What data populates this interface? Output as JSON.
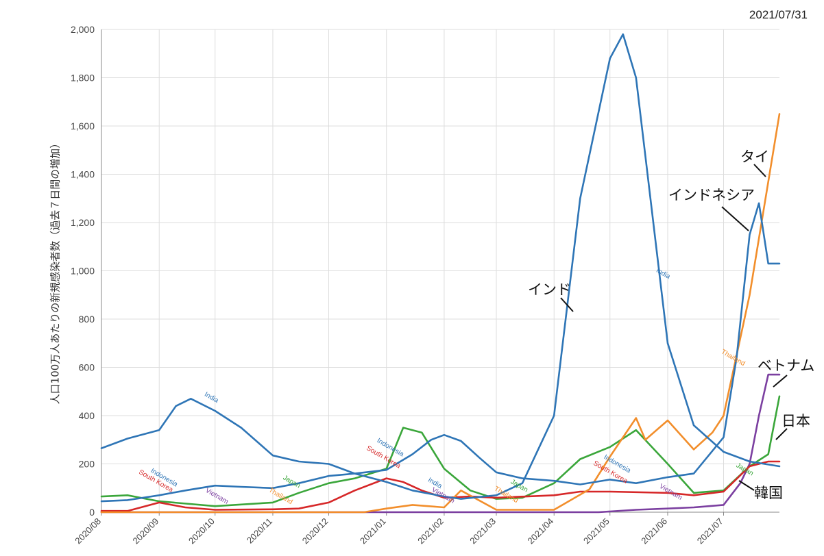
{
  "chart_data": {
    "type": "line",
    "date": "2021/07/31",
    "ylabel": "人口100万人あたりの新規感染者数（過去７日間の増加）",
    "ylim": [
      0,
      2000
    ],
    "yticks": [
      0,
      200,
      400,
      600,
      800,
      1000,
      1200,
      1400,
      1600,
      1800,
      2000
    ],
    "ytick_labels": [
      "0",
      "200",
      "400",
      "600",
      "800",
      "1,000",
      "1,200",
      "1,400",
      "1,600",
      "1,800",
      "2,000"
    ],
    "xlim": [
      "2020-08-01",
      "2021-07-31"
    ],
    "xticks": [
      "2020/08",
      "2020/09",
      "2020/10",
      "2020/11",
      "2020/12",
      "2021/01",
      "2021/02",
      "2021/03",
      "2021/04",
      "2021/05",
      "2021/06",
      "2021/07"
    ],
    "grid": true,
    "series": [
      {
        "name": "India",
        "color": "#2e75b6",
        "x": [
          "2020-08-01",
          "2020-08-15",
          "2020-09-01",
          "2020-09-10",
          "2020-09-18",
          "2020-10-01",
          "2020-10-15",
          "2020-11-01",
          "2020-11-15",
          "2020-12-01",
          "2020-12-15",
          "2021-01-01",
          "2021-01-15",
          "2021-02-01",
          "2021-02-10",
          "2021-03-01",
          "2021-03-15",
          "2021-04-01",
          "2021-04-15",
          "2021-05-01",
          "2021-05-08",
          "2021-05-15",
          "2021-06-01",
          "2021-06-15",
          "2021-07-01",
          "2021-07-15",
          "2021-07-31"
        ],
        "values": [
          265,
          305,
          340,
          440,
          470,
          420,
          350,
          235,
          210,
          200,
          160,
          125,
          90,
          65,
          55,
          70,
          120,
          400,
          1300,
          1880,
          1980,
          1800,
          700,
          360,
          250,
          210,
          190
        ]
      },
      {
        "name": "Indonesia",
        "color": "#2e75b6",
        "x": [
          "2020-08-01",
          "2020-08-15",
          "2020-09-01",
          "2020-09-15",
          "2020-10-01",
          "2020-10-15",
          "2020-11-01",
          "2020-11-15",
          "2020-12-01",
          "2020-12-15",
          "2021-01-01",
          "2021-01-15",
          "2021-01-25",
          "2021-02-01",
          "2021-02-10",
          "2021-02-20",
          "2021-03-01",
          "2021-03-15",
          "2021-04-01",
          "2021-04-15",
          "2021-05-01",
          "2021-05-15",
          "2021-06-01",
          "2021-06-15",
          "2021-07-01",
          "2021-07-08",
          "2021-07-15",
          "2021-07-20",
          "2021-07-25",
          "2021-07-31"
        ],
        "values": [
          45,
          50,
          70,
          90,
          110,
          105,
          100,
          120,
          150,
          160,
          175,
          240,
          300,
          320,
          295,
          225,
          165,
          140,
          130,
          115,
          135,
          120,
          145,
          160,
          310,
          640,
          1150,
          1280,
          1030,
          1030
        ]
      },
      {
        "name": "Thailand",
        "color": "#f28e2b",
        "x": [
          "2020-08-01",
          "2020-12-20",
          "2021-01-01",
          "2021-01-15",
          "2021-02-01",
          "2021-02-10",
          "2021-03-01",
          "2021-04-01",
          "2021-04-20",
          "2021-05-01",
          "2021-05-15",
          "2021-05-20",
          "2021-06-01",
          "2021-06-15",
          "2021-06-25",
          "2021-07-01",
          "2021-07-15",
          "2021-07-31"
        ],
        "values": [
          0,
          0,
          15,
          30,
          20,
          90,
          10,
          10,
          95,
          230,
          390,
          300,
          380,
          260,
          330,
          400,
          900,
          1650
        ]
      },
      {
        "name": "Japan",
        "color": "#3aa63a",
        "x": [
          "2020-08-01",
          "2020-08-15",
          "2020-09-01",
          "2020-10-01",
          "2020-11-01",
          "2020-11-15",
          "2020-12-01",
          "2020-12-15",
          "2021-01-01",
          "2021-01-10",
          "2021-01-20",
          "2021-02-01",
          "2021-02-15",
          "2021-03-01",
          "2021-03-15",
          "2021-04-01",
          "2021-04-15",
          "2021-05-01",
          "2021-05-15",
          "2021-06-01",
          "2021-06-15",
          "2021-07-01",
          "2021-07-15",
          "2021-07-25",
          "2021-07-31"
        ],
        "values": [
          65,
          70,
          45,
          25,
          40,
          80,
          120,
          140,
          180,
          350,
          330,
          180,
          90,
          55,
          60,
          120,
          220,
          270,
          340,
          200,
          80,
          90,
          190,
          240,
          480
        ]
      },
      {
        "name": "South Korea",
        "color": "#d62728",
        "x": [
          "2020-08-01",
          "2020-08-15",
          "2020-09-01",
          "2020-09-15",
          "2020-10-01",
          "2020-11-01",
          "2020-11-15",
          "2020-12-01",
          "2020-12-15",
          "2021-01-01",
          "2021-01-10",
          "2021-01-20",
          "2021-02-01",
          "2021-02-15",
          "2021-03-01",
          "2021-04-01",
          "2021-04-15",
          "2021-05-01",
          "2021-06-01",
          "2021-06-15",
          "2021-07-01",
          "2021-07-15",
          "2021-07-25",
          "2021-07-31"
        ],
        "values": [
          5,
          5,
          40,
          20,
          10,
          12,
          15,
          40,
          90,
          140,
          125,
          90,
          60,
          65,
          60,
          70,
          85,
          85,
          80,
          70,
          85,
          190,
          210,
          210
        ]
      },
      {
        "name": "Vietnam",
        "color": "#7b3fa0",
        "x": [
          "2020-08-01",
          "2021-02-01",
          "2021-04-25",
          "2021-05-15",
          "2021-06-01",
          "2021-06-15",
          "2021-07-01",
          "2021-07-10",
          "2021-07-15",
          "2021-07-20",
          "2021-07-25",
          "2021-07-31"
        ],
        "values": [
          0,
          0,
          0,
          10,
          15,
          20,
          30,
          120,
          200,
          400,
          570,
          570
        ]
      }
    ],
    "inline_labels": [
      {
        "text": "India",
        "series": "India"
      },
      {
        "text": "India",
        "series": "India"
      },
      {
        "text": "India",
        "series": "India"
      },
      {
        "text": "Indonesia",
        "series": "Indonesia"
      },
      {
        "text": "Indonesia",
        "series": "Indonesia"
      },
      {
        "text": "Indonesia",
        "series": "Indonesia"
      },
      {
        "text": "Thailand",
        "series": "Thailand"
      },
      {
        "text": "Thailand",
        "series": "Thailand"
      },
      {
        "text": "Thailand",
        "series": "Thailand"
      },
      {
        "text": "Japan",
        "series": "Japan"
      },
      {
        "text": "Japan",
        "series": "Japan"
      },
      {
        "text": "Japan",
        "series": "Japan"
      },
      {
        "text": "South Korea",
        "series": "South Korea"
      },
      {
        "text": "South Korea",
        "series": "South Korea"
      },
      {
        "text": "South Korea",
        "series": "South Korea"
      },
      {
        "text": "Vietnam",
        "series": "Vietnam"
      },
      {
        "text": "Vietnam",
        "series": "Vietnam"
      },
      {
        "text": "Vietnam",
        "series": "Vietnam"
      }
    ],
    "annotations": [
      {
        "text": "インド",
        "series": "India"
      },
      {
        "text": "インドネシア",
        "series": "Indonesia"
      },
      {
        "text": "タイ",
        "series": "Thailand"
      },
      {
        "text": "ベトナム",
        "series": "Vietnam"
      },
      {
        "text": "日本",
        "series": "Japan"
      },
      {
        "text": "韓国",
        "series": "South Korea"
      }
    ]
  }
}
